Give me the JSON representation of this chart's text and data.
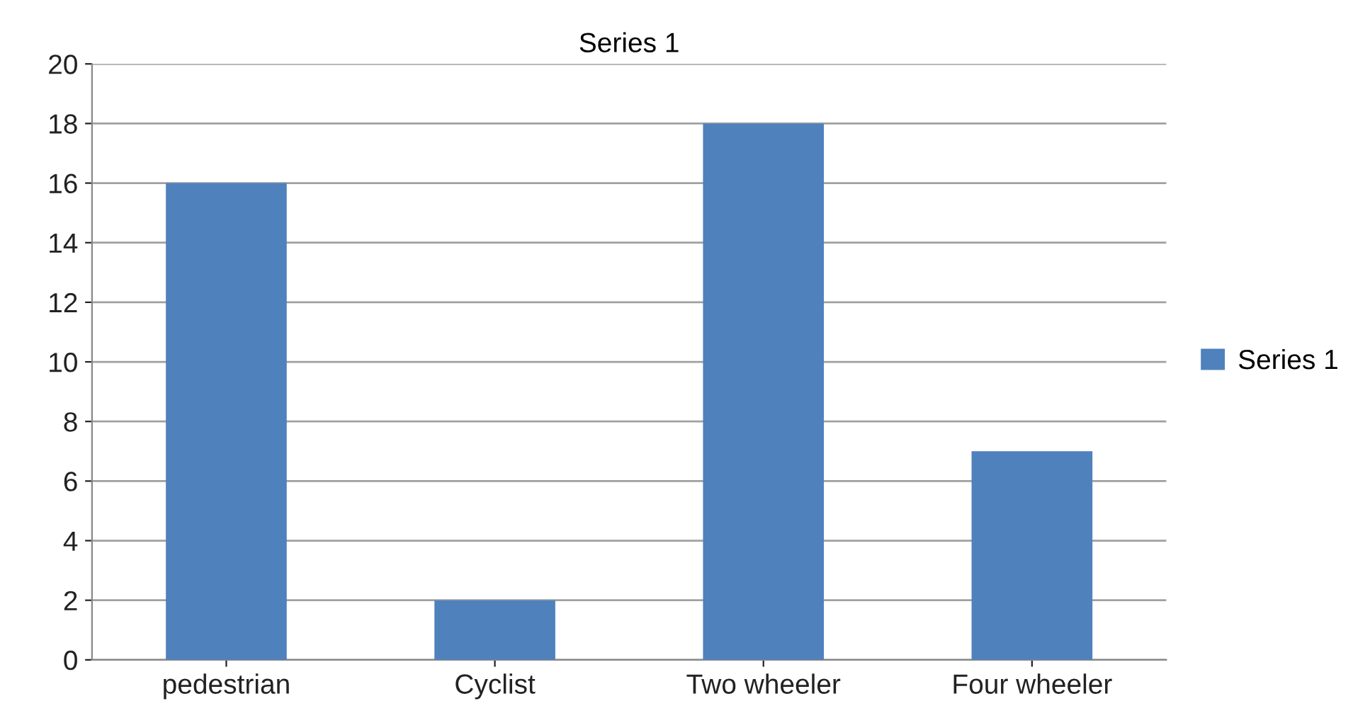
{
  "chart_data": {
    "type": "bar",
    "title": "Series 1",
    "categories": [
      "pedestrian",
      "Cyclist",
      "Two wheeler",
      "Four wheeler"
    ],
    "series": [
      {
        "name": "Series 1",
        "color": "#4f81bd",
        "values": [
          16,
          2,
          18,
          7
        ]
      }
    ],
    "ylim": [
      0,
      20
    ],
    "yticks": [
      0,
      2,
      4,
      6,
      8,
      10,
      12,
      14,
      16,
      18,
      20
    ],
    "grid": "y",
    "legend": "right"
  }
}
